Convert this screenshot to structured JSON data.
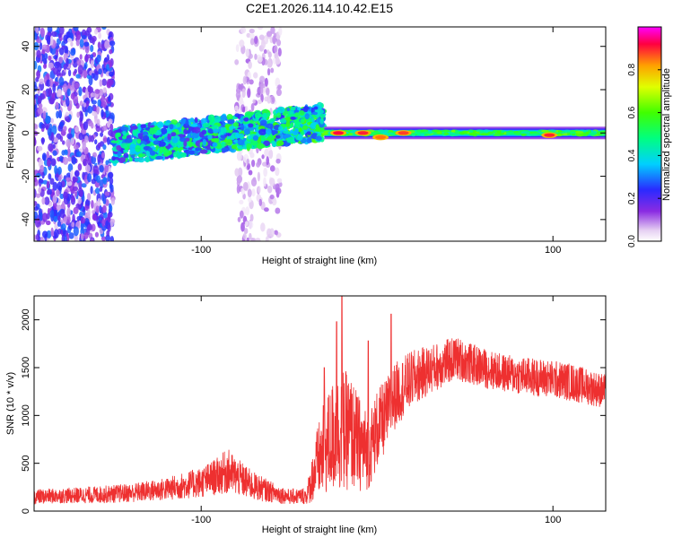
{
  "figure_title": "C2E1.2026.114.10.42.E15",
  "chart_data": [
    {
      "type": "heatmap",
      "xlabel": "Height of straight line (km)",
      "ylabel": "Frequency (Hz)",
      "xlim": [
        -195,
        130
      ],
      "ylim": [
        -50,
        49
      ],
      "x_ticks": [
        -100,
        100
      ],
      "x_tick_labels": [
        "-100",
        "100"
      ],
      "y_ticks": [
        -40,
        -20,
        0,
        20,
        40
      ],
      "y_tick_labels": [
        "-40",
        "-20",
        "0",
        "20",
        "40"
      ],
      "colorbar": {
        "label": "Normalized spectral amplitude",
        "range": [
          0.0,
          1.0
        ],
        "ticks": [
          0.0,
          0.2,
          0.4,
          0.6,
          0.8
        ],
        "tick_labels": [
          "0.0",
          "0.2",
          "0.4",
          "0.6",
          "0.8"
        ]
      },
      "features": [
        {
          "name": "scattered noise",
          "x_range": [
            -195,
            -150
          ],
          "freq_range": [
            -50,
            49
          ],
          "amplitude": 0.25
        },
        {
          "name": "noise band",
          "x_range": [
            -80,
            -55
          ],
          "freq_range": [
            -50,
            49
          ],
          "amplitude": 0.1
        },
        {
          "name": "widening carrier",
          "x_range": [
            -150,
            -30
          ],
          "center_freq_start": -6,
          "center_freq_end": 5,
          "amplitude": 0.35
        },
        {
          "name": "carrier line",
          "x_range": [
            -30,
            130
          ],
          "center_freq": 0,
          "amplitude": 0.55
        },
        {
          "name": "peak",
          "x": -22,
          "freq": 0,
          "amplitude": 0.92
        },
        {
          "name": "peak",
          "x": -8,
          "freq": 0,
          "amplitude": 0.9
        },
        {
          "name": "peak",
          "x": 2,
          "freq": -2,
          "amplitude": 0.85
        },
        {
          "name": "peak",
          "x": 15,
          "freq": 0,
          "amplitude": 0.88
        },
        {
          "name": "peak",
          "x": 98,
          "freq": -1,
          "amplitude": 0.9
        }
      ]
    },
    {
      "type": "line",
      "xlabel": "Height of straight line (km)",
      "ylabel": "SNR (10 * v/v)",
      "xlim": [
        -195,
        130
      ],
      "ylim": [
        0,
        2250
      ],
      "x_ticks": [
        -100,
        100
      ],
      "x_tick_labels": [
        "-100",
        "100"
      ],
      "y_ticks": [
        0,
        500,
        1000,
        1500,
        2000
      ],
      "y_tick_labels": [
        "0",
        "500",
        "1000",
        "1500",
        "2000"
      ],
      "series": [
        {
          "name": "SNR",
          "color": "#ee3030",
          "x": [
            -195,
            -180,
            -160,
            -140,
            -120,
            -100,
            -90,
            -85,
            -80,
            -70,
            -60,
            -50,
            -40,
            -35,
            -30,
            -25,
            -20,
            -15,
            -10,
            -5,
            0,
            5,
            10,
            15,
            20,
            30,
            40,
            45,
            50,
            60,
            70,
            80,
            90,
            100,
            110,
            120,
            130
          ],
          "values": [
            150,
            160,
            170,
            190,
            230,
            300,
            370,
            420,
            360,
            260,
            200,
            150,
            160,
            450,
            650,
            780,
            850,
            820,
            700,
            620,
            850,
            1000,
            1200,
            1300,
            1380,
            1480,
            1560,
            1600,
            1560,
            1500,
            1450,
            1420,
            1400,
            1380,
            1350,
            1300,
            1250
          ],
          "spread": [
            80,
            80,
            90,
            100,
            120,
            160,
            200,
            240,
            200,
            150,
            110,
            80,
            90,
            350,
            500,
            600,
            650,
            600,
            500,
            400,
            420,
            380,
            350,
            320,
            300,
            260,
            240,
            230,
            220,
            210,
            200,
            200,
            200,
            200,
            200,
            190,
            180
          ],
          "spikes": [
            {
              "x": -20,
              "y": 2250
            },
            {
              "x": -23,
              "y": 1980
            },
            {
              "x": 8,
              "y": 2060
            },
            {
              "x": -30,
              "y": 1500
            },
            {
              "x": -5,
              "y": 1780
            }
          ]
        }
      ]
    }
  ]
}
